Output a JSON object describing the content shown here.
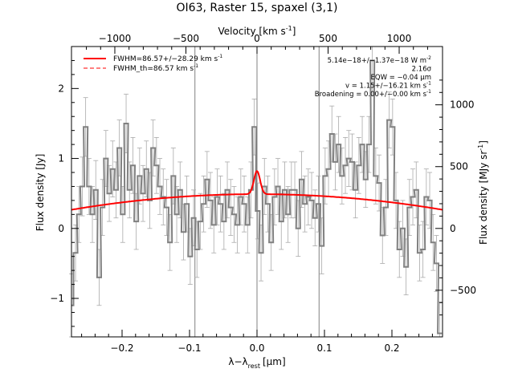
{
  "chart_data": {
    "type": "line",
    "title": "OI63, Raster 15, spaxel (3,1)",
    "xlabel": "λ−λ",
    "xlabel_sub": "rest",
    "xlabel_unit": "[μm]",
    "ylabel": "Flux density [Jy]",
    "top_xlabel": "Velocity [km s",
    "top_xlabel_sup": "-1",
    "top_xlabel_end": "]",
    "right_ylabel": "Flux density [MJy sr",
    "right_ylabel_sup": "-1",
    "right_ylabel_end": "]",
    "xlim": [
      -0.275,
      0.275
    ],
    "ylim": [
      -1.55,
      2.6
    ],
    "x_ticks": [
      -0.2,
      -0.1,
      0.0,
      0.1,
      0.2
    ],
    "x_tick_labels": [
      "−0.2",
      "−0.1",
      "0.0",
      "0.1",
      "0.2"
    ],
    "y_ticks": [
      -1,
      0,
      1,
      2
    ],
    "y_tick_labels": [
      "−1",
      "0",
      "1",
      "2"
    ],
    "top_ticks_kms": [
      -1000,
      -500,
      0,
      500,
      1000
    ],
    "top_tick_labels": [
      "−1000",
      "−500",
      "0",
      "500",
      "1000"
    ],
    "right_ticks": [
      -500,
      0,
      500,
      1000
    ],
    "right_tick_labels": [
      "−500",
      "0",
      "500",
      "1000"
    ],
    "right_per_jy": 566.0,
    "vertical_lines": [
      -0.092,
      0.0,
      0.092
    ],
    "legend": {
      "position": "top-left",
      "entries": [
        {
          "label": "FWHM=86.57+/−28.29 km s",
          "sup": "-1",
          "style": "solid",
          "color": "#ff0000"
        },
        {
          "label": "FWHM_th=86.57 km s",
          "sup": "-1",
          "style": "dashed",
          "color": "#ff0000"
        }
      ]
    },
    "annotations": [
      {
        "text": "5.14e−18+/−1.37e−18 W m",
        "sup": "-2"
      },
      {
        "text": "2.16σ",
        "sup": ""
      },
      {
        "text": "EQW = −0.04 μm",
        "sup": ""
      },
      {
        "text": "v = 1.15+/−16.21 km s",
        "sup": "-1"
      },
      {
        "text": "Broadening = 0.00+/−0.00 km s",
        "sup": "-1"
      }
    ],
    "colors": {
      "data": "#808080",
      "fit": "#ff0000",
      "vlines": "#808080",
      "errorbars": "#aaaaaa"
    },
    "fit": {
      "baseline_peak": 0.49,
      "baseline_center": 0.0,
      "baseline_curvature": 2.95,
      "gauss_amp": 0.33,
      "gauss_center": 0.0,
      "gauss_sigma": 0.0046
    },
    "series": [
      {
        "x": [
          -0.275,
          -0.269,
          -0.264,
          -0.259,
          -0.254,
          -0.249,
          -0.244,
          -0.239,
          -0.234,
          -0.229,
          -0.224,
          -0.219,
          -0.214,
          -0.209,
          -0.204,
          -0.199,
          -0.194,
          -0.189,
          -0.184,
          -0.179,
          -0.174,
          -0.169,
          -0.164,
          -0.159,
          -0.154,
          -0.149,
          -0.144,
          -0.139,
          -0.134,
          -0.129,
          -0.124,
          -0.119,
          -0.114,
          -0.109,
          -0.104,
          -0.099,
          -0.094,
          -0.089,
          -0.084,
          -0.079,
          -0.074,
          -0.069,
          -0.064,
          -0.059,
          -0.054,
          -0.049,
          -0.044,
          -0.039,
          -0.034,
          -0.029,
          -0.024,
          -0.019,
          -0.014,
          -0.009,
          -0.004,
          0.001,
          0.006,
          0.011,
          0.016,
          0.021,
          0.026,
          0.031,
          0.036,
          0.041,
          0.046,
          0.051,
          0.056,
          0.061,
          0.066,
          0.071,
          0.076,
          0.081,
          0.086,
          0.091,
          0.096,
          0.101,
          0.106,
          0.111,
          0.116,
          0.121,
          0.126,
          0.131,
          0.136,
          0.141,
          0.146,
          0.151,
          0.156,
          0.161,
          0.166,
          0.171,
          0.176,
          0.181,
          0.186,
          0.191,
          0.196,
          0.201,
          0.206,
          0.211,
          0.216,
          0.221,
          0.226,
          0.231,
          0.236,
          0.241,
          0.246,
          0.251,
          0.256,
          0.261,
          0.266,
          0.271
        ],
        "y": [
          -1.1,
          -0.35,
          0.2,
          0.6,
          1.45,
          0.6,
          0.2,
          0.55,
          -0.7,
          0.3,
          1.0,
          0.5,
          0.85,
          0.55,
          1.15,
          0.2,
          1.5,
          0.55,
          0.9,
          0.1,
          0.75,
          0.5,
          0.85,
          0.4,
          1.15,
          0.9,
          0.6,
          0.45,
          0.3,
          -0.2,
          0.75,
          0.2,
          0.55,
          -0.05,
          0.35,
          -0.4,
          0.15,
          -0.3,
          0.1,
          0.35,
          0.7,
          0.4,
          0.05,
          0.45,
          0.35,
          0.1,
          0.55,
          0.3,
          0.2,
          0.05,
          0.45,
          0.35,
          0.05,
          0.55,
          1.45,
          0.25,
          -0.35,
          0.6,
          0.35,
          -0.2,
          0.45,
          0.6,
          0.1,
          0.55,
          0.2,
          0.55,
          0.55,
          0.0,
          0.7,
          0.35,
          0.45,
          0.4,
          0.15,
          0.35,
          -0.25,
          0.75,
          0.85,
          1.35,
          0.95,
          1.2,
          0.75,
          0.9,
          1.0,
          0.95,
          0.55,
          0.9,
          1.2,
          0.7,
          1.2,
          2.4,
          0.75,
          0.65,
          -0.1,
          0.3,
          1.55,
          1.45,
          0.4,
          -0.3,
          0.0,
          -0.55,
          0.3,
          0.45,
          0.55,
          -0.35,
          -0.3,
          0.45,
          0.4,
          -0.2,
          -0.5,
          -1.5
        ],
        "err": [
          0.45,
          0.4,
          0.4,
          0.42,
          0.42,
          0.4,
          0.4,
          0.42,
          0.4,
          0.4,
          0.4,
          0.4,
          0.4,
          0.4,
          0.4,
          0.4,
          0.42,
          0.4,
          0.4,
          0.4,
          0.4,
          0.4,
          0.4,
          0.4,
          0.4,
          0.4,
          0.4,
          0.4,
          0.4,
          0.4,
          0.4,
          0.4,
          0.4,
          0.4,
          0.4,
          0.4,
          0.4,
          0.4,
          0.4,
          0.4,
          0.4,
          0.4,
          0.4,
          0.4,
          0.4,
          0.4,
          0.4,
          0.4,
          0.4,
          0.4,
          0.4,
          0.4,
          0.4,
          0.4,
          0.4,
          0.4,
          0.4,
          0.4,
          0.4,
          0.4,
          0.4,
          0.4,
          0.4,
          0.4,
          0.4,
          0.4,
          0.4,
          0.4,
          0.4,
          0.4,
          0.4,
          0.4,
          0.4,
          0.4,
          0.4,
          0.4,
          0.4,
          0.4,
          0.4,
          0.4,
          0.4,
          0.4,
          0.4,
          0.4,
          0.4,
          0.4,
          0.4,
          0.4,
          0.4,
          0.5,
          0.4,
          0.4,
          0.4,
          0.4,
          0.4,
          0.4,
          0.4,
          0.4,
          0.4,
          0.4,
          0.4,
          0.4,
          0.4,
          0.4,
          0.4,
          0.4,
          0.4,
          0.4,
          0.4,
          0.45
        ]
      }
    ]
  }
}
